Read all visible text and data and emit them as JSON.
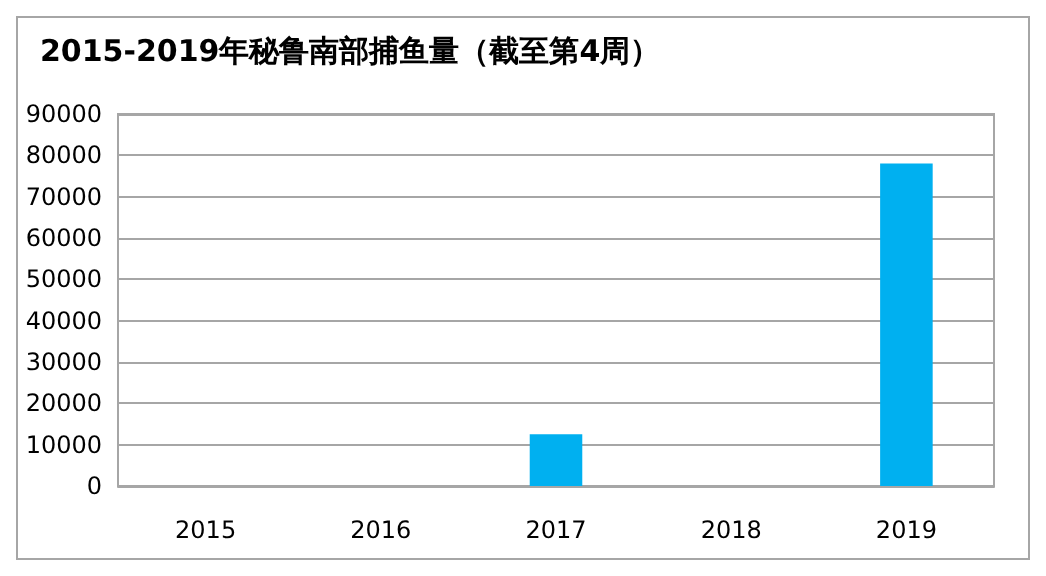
{
  "chart_data": {
    "type": "bar",
    "title": "2015-2019年秘鲁南部捕鱼量（截至第4周）",
    "categories": [
      "2015",
      "2016",
      "2017",
      "2018",
      "2019"
    ],
    "values": [
      0,
      0,
      12500,
      0,
      78000
    ],
    "color": "#00b0f0",
    "ylim": [
      0,
      90000
    ],
    "yticks": [
      0,
      10000,
      20000,
      30000,
      40000,
      50000,
      60000,
      70000,
      80000,
      90000
    ],
    "grid": "y"
  }
}
